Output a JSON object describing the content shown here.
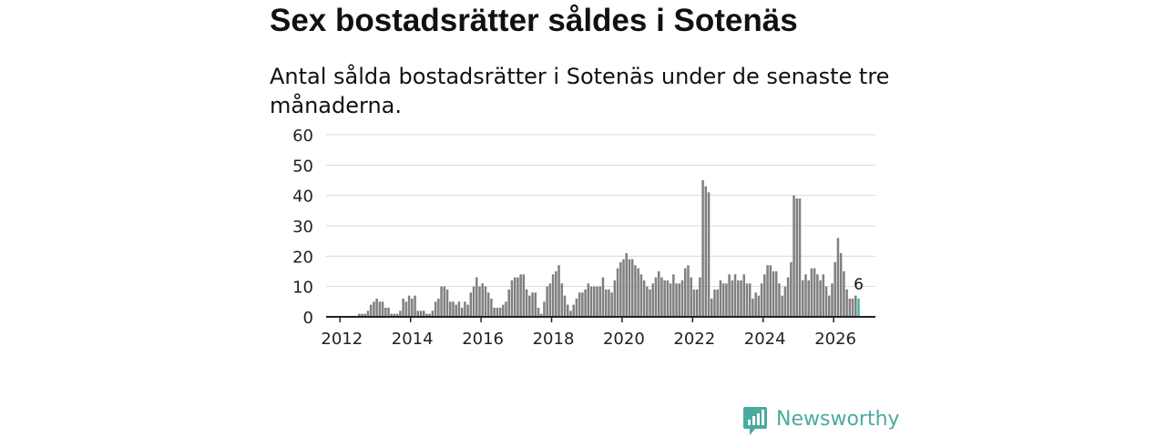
{
  "title": "Sex bostadsrätter såldes i Sotenäs",
  "subtitle": "Antal sålda bostadsrätter i Sotenäs under de senaste tre månaderna.",
  "brand": {
    "name": "Newsworthy",
    "color": "#4aaaa0",
    "icon": "newsworthy-logo-icon"
  },
  "chart_data": {
    "type": "bar",
    "title": "Sex bostadsrätter såldes i Sotenäs",
    "subtitle": "Antal sålda bostadsrätter i Sotenäs under de senaste tre månaderna.",
    "xlabel": "",
    "ylabel": "",
    "ylim": [
      0,
      60
    ],
    "yticks": [
      0,
      10,
      20,
      30,
      40,
      50,
      60
    ],
    "xticks": [
      "2012",
      "2014",
      "2016",
      "2018",
      "2020",
      "2022",
      "2024",
      "2026"
    ],
    "grid": true,
    "bar_color": "#808080",
    "highlight_color": "#3fb8af",
    "start": "2012-01",
    "end": "2026-02",
    "values": [
      0,
      0,
      0,
      0,
      0,
      0,
      1,
      1,
      1,
      2,
      4,
      5,
      6,
      5,
      5,
      3,
      3,
      1,
      1,
      1,
      2,
      6,
      5,
      7,
      6,
      7,
      2,
      2,
      2,
      1,
      1,
      2,
      5,
      6,
      10,
      10,
      9,
      5,
      5,
      4,
      5,
      3,
      5,
      4,
      8,
      10,
      13,
      10,
      11,
      10,
      8,
      6,
      3,
      3,
      3,
      4,
      5,
      9,
      12,
      13,
      13,
      14,
      14,
      9,
      7,
      8,
      8,
      3,
      1,
      5,
      10,
      11,
      14,
      15,
      17,
      11,
      7,
      4,
      2,
      4,
      6,
      8,
      8,
      9,
      11,
      10,
      10,
      10,
      10,
      13,
      9,
      9,
      8,
      12,
      16,
      18,
      19,
      21,
      19,
      19,
      17,
      16,
      14,
      12,
      10,
      9,
      11,
      13,
      15,
      13,
      12,
      12,
      11,
      14,
      11,
      11,
      12,
      16,
      17,
      13,
      9,
      9,
      13,
      45,
      43,
      41,
      6,
      9,
      9,
      12,
      11,
      11,
      14,
      12,
      14,
      12,
      12,
      14,
      11,
      11,
      6,
      8,
      7,
      11,
      14,
      17,
      17,
      15,
      15,
      11,
      7,
      10,
      13,
      18,
      40,
      39,
      39,
      12,
      14,
      12,
      16,
      16,
      14,
      12,
      14,
      10,
      7,
      11,
      18,
      26,
      21,
      15,
      9,
      6,
      6,
      7,
      6
    ],
    "last_value_label": "6"
  }
}
